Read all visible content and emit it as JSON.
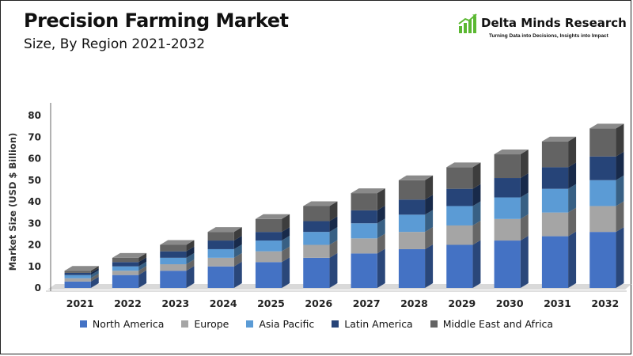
{
  "header": {
    "title": "Precision Farming Market",
    "subtitle": "Size, By Region 2021-2032"
  },
  "logo": {
    "name": "Delta Minds Research",
    "tagline": "Turning Data into Decisions, Insights into Impact",
    "icon": "bar-chart-growth-icon",
    "accent_color": "#5bb832"
  },
  "chart_data": {
    "type": "bar",
    "stacked": true,
    "style": "3d",
    "title": "",
    "xlabel": "",
    "ylabel": "Market Size (USD $ Billion)",
    "ylim": [
      0,
      80
    ],
    "yticks": [
      0,
      10,
      20,
      30,
      40,
      50,
      60,
      70,
      80
    ],
    "grid": false,
    "legend_position": "bottom",
    "categories": [
      "2021",
      "2022",
      "2023",
      "2024",
      "2025",
      "2026",
      "2027",
      "2028",
      "2029",
      "2030",
      "2031",
      "2032"
    ],
    "series": [
      {
        "name": "North America",
        "color": "#4472c4",
        "values": [
          3,
          6,
          8,
          10,
          12,
          14,
          16,
          18,
          20,
          22,
          24,
          26
        ]
      },
      {
        "name": "Europe",
        "color": "#a5a5a5",
        "values": [
          1.5,
          2,
          3,
          4,
          5,
          6,
          7,
          8,
          9,
          10,
          11,
          12
        ]
      },
      {
        "name": "Asia Pacific",
        "color": "#5b9bd5",
        "values": [
          1.5,
          2,
          3,
          4,
          5,
          6,
          7,
          8,
          9,
          10,
          11,
          12
        ]
      },
      {
        "name": "Latin America",
        "color": "#264478",
        "values": [
          1,
          2,
          3,
          4,
          4,
          5,
          6,
          7,
          8,
          9,
          10,
          11
        ]
      },
      {
        "name": "Middle East and Africa",
        "color": "#636363",
        "values": [
          1,
          2,
          3,
          4,
          6,
          7,
          8,
          9,
          10,
          11,
          12,
          13
        ]
      }
    ]
  }
}
